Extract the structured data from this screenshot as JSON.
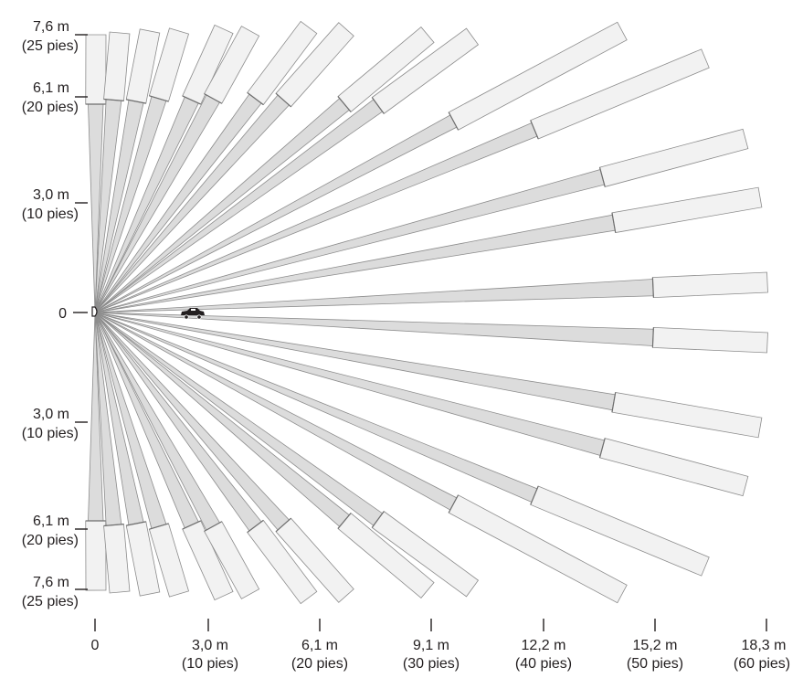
{
  "diagram": {
    "colors": {
      "inner_zone": "#dcdcdc",
      "outer_zone": "#f2f2f2",
      "outline": "#8c8c8c",
      "text": "#231f20"
    },
    "icons": {
      "sensor": "sensor-icon",
      "vehicle": "car-icon"
    },
    "vertical_labels": {
      "top": [
        {
          "value": "7,6 m",
          "unit": "(25 pies)"
        },
        {
          "value": "6,1 m",
          "unit": "(20 pies)"
        },
        {
          "value": "3,0 m",
          "unit": "(10 pies)"
        }
      ],
      "origin": "0",
      "bottom": [
        {
          "value": "3,0 m",
          "unit": "(10 pies)"
        },
        {
          "value": "6,1 m",
          "unit": "(20 pies)"
        },
        {
          "value": "7,6 m",
          "unit": "(25 pies)"
        }
      ]
    },
    "horizontal_labels": [
      {
        "value": "0",
        "unit": ""
      },
      {
        "value": "3,0 m",
        "unit": "(10 pies)"
      },
      {
        "value": "6,1 m",
        "unit": "(20 pies)"
      },
      {
        "value": "9,1 m",
        "unit": "(30 pies)"
      },
      {
        "value": "12,2 m",
        "unit": "(40 pies)"
      },
      {
        "value": "15,2 m",
        "unit": "(50 pies)"
      },
      {
        "value": "18,3 m",
        "unit": "(60 pies)"
      }
    ]
  }
}
